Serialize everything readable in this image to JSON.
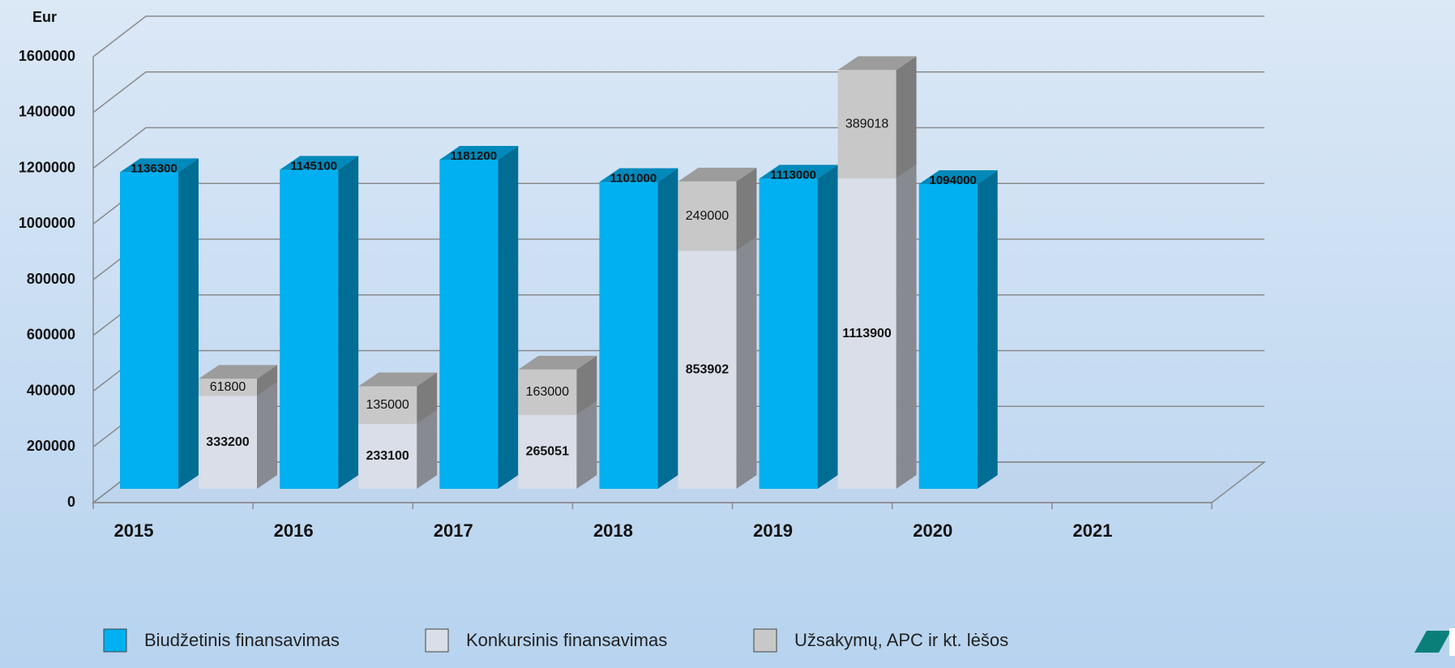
{
  "chart_data": {
    "type": "bar3d",
    "y_label": "Eur",
    "categories": [
      "2015",
      "2016",
      "2017",
      "2018",
      "2019",
      "2020",
      "2021"
    ],
    "series": [
      {
        "name": "Biudžetinis finansavimas",
        "color": "#00b0f0",
        "values": [
          1136300,
          1145100,
          1181200,
          1101000,
          1113000,
          1094000,
          null
        ]
      },
      {
        "name": "Konkursinis finansavimas",
        "color": "#d9dee8",
        "values": [
          333200,
          233100,
          265051,
          853902,
          1113900,
          null,
          null
        ]
      },
      {
        "name": "Užsakymų, APC ir kt. lėšos",
        "color": "#c8c8c8",
        "values": [
          61800,
          135000,
          163000,
          249000,
          389018,
          null,
          null
        ]
      }
    ],
    "stacked_series": [
      1,
      2
    ],
    "ylim": [
      0,
      1600000
    ],
    "yticks": [
      0,
      200000,
      400000,
      600000,
      800000,
      1000000,
      1200000,
      1400000,
      1600000
    ],
    "grid": true,
    "legend": "bottom"
  }
}
